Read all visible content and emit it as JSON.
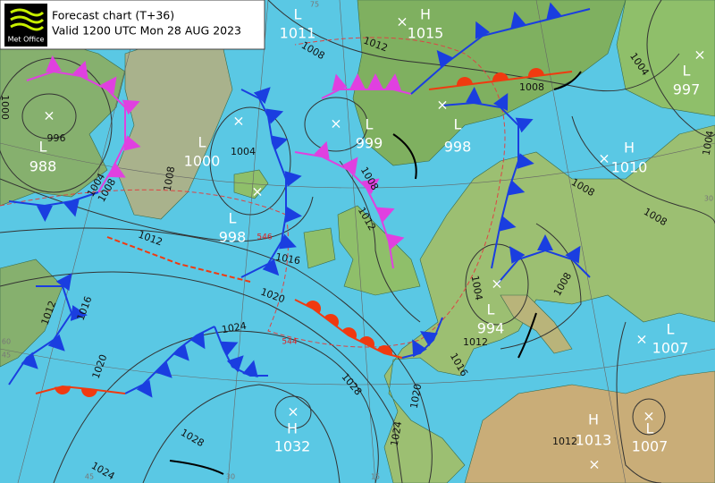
{
  "header": {
    "title": "Forecast chart (T+36)",
    "valid": "Valid 1200 UTC Mon 28 AUG 2023",
    "logo": "Met Office"
  },
  "centers": [
    {
      "type": "L",
      "value": 1011
    },
    {
      "type": "H",
      "value": 1015
    },
    {
      "type": "L",
      "value": 997
    },
    {
      "type": "L",
      "value": 988
    },
    {
      "type": "L",
      "value": 1000
    },
    {
      "type": "L",
      "value": 999
    },
    {
      "type": "L",
      "value": 998
    },
    {
      "type": "H",
      "value": 1010
    },
    {
      "type": "L",
      "value": 998
    },
    {
      "type": "L",
      "value": 994
    },
    {
      "type": "L",
      "value": 1007
    },
    {
      "type": "H",
      "value": 1032
    },
    {
      "type": "H",
      "value": 1013
    },
    {
      "type": "L",
      "value": 1007
    }
  ],
  "isobar_labels": [
    1012,
    1008,
    1008,
    1004,
    1004,
    996,
    1004,
    1008,
    1008,
    1008,
    1012,
    1012,
    1016,
    1020,
    1012,
    1016,
    1020,
    1024,
    1028,
    1024,
    1020,
    1016,
    1012,
    1004,
    1008,
    1008,
    1008,
    1004,
    1028,
    1024,
    1012,
    1000
  ],
  "thickness_labels": [
    546,
    544
  ],
  "grid_labels": [
    75,
    30,
    15,
    45,
    60,
    45,
    30
  ]
}
